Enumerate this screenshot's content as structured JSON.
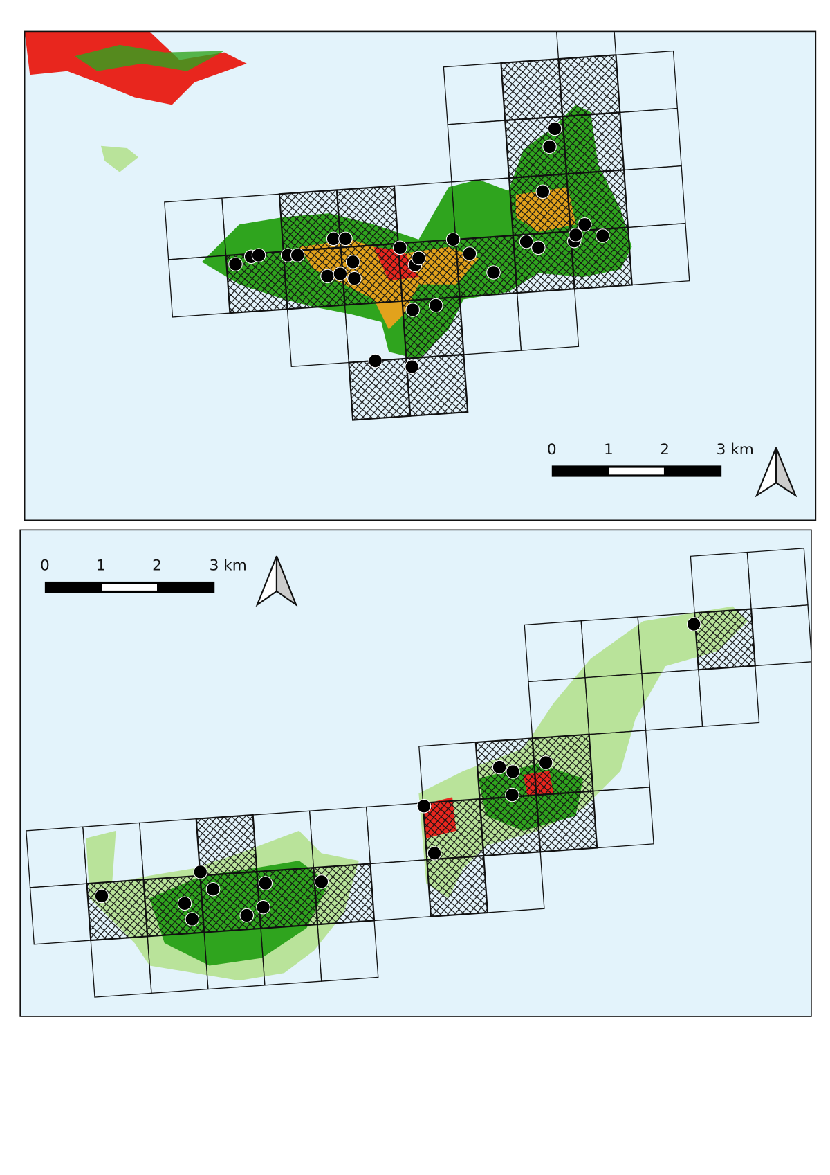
{
  "maps": [
    {
      "scale_bar": {
        "labels": [
          "0",
          "1",
          "2",
          "3 km"
        ]
      }
    },
    {
      "scale_bar": {
        "labels": [
          "0",
          "1",
          "2",
          "3 km"
        ]
      }
    }
  ]
}
